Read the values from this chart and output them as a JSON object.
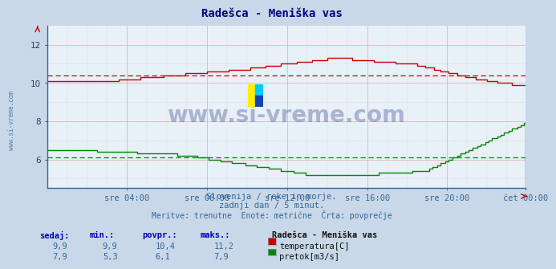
{
  "title": "Radešca - Meniška vas",
  "bg_color": "#c8d8e8",
  "plot_bg_color": "#e8f0f8",
  "temp_color": "#cc0000",
  "flow_color": "#008800",
  "x_labels": [
    "sre 04:00",
    "sre 08:00",
    "sre 12:00",
    "sre 16:00",
    "sre 20:00",
    "čet 00:00"
  ],
  "ylim_min": 4.5,
  "ylim_max": 13.0,
  "yticks": [
    6,
    8,
    10,
    12
  ],
  "grid_color": "#ddaaaa",
  "footer_line1": "Slovenija / reke in morje.",
  "footer_line2": "zadnji dan / 5 minut.",
  "footer_line3": "Meritve: trenutne  Enote: metrične  Črta: povprečje",
  "footer_color": "#336699",
  "watermark": "www.si-vreme.com",
  "watermark_color": "#334488",
  "sidebar_text": "www.si-vreme.com",
  "table_headers": [
    "sedaj:",
    "min.:",
    "povpr.:",
    "maks.:"
  ],
  "table_row1": [
    "9,9",
    "9,9",
    "10,4",
    "11,2"
  ],
  "table_row2": [
    "7,9",
    "5,3",
    "6,1",
    "7,9"
  ],
  "legend_station": "Radešca - Meniška vas",
  "legend_temp": "temperatura[C]",
  "legend_flow": "pretok[m3/s]",
  "temp_avg": 10.4,
  "flow_avg": 6.1,
  "n_points": 288
}
